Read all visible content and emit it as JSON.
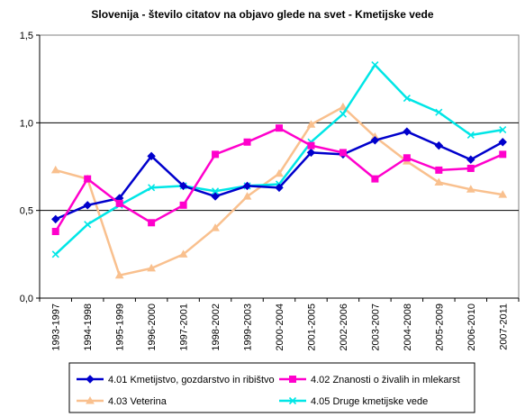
{
  "chart_data": {
    "type": "line",
    "title": "Slovenija - število citatov na objavo glede na svet - Kmetijske vede",
    "xlabel": "",
    "ylabel": "",
    "ylim": [
      0,
      1.5
    ],
    "yticks": [
      "0,0",
      "0,5",
      "1,0",
      "1,5"
    ],
    "categories": [
      "1993-1997",
      "1994-1998",
      "1995-1999",
      "1996-2000",
      "1997-2001",
      "1998-2002",
      "1999-2003",
      "2000-2004",
      "2001-2005",
      "2002-2006",
      "2003-2007",
      "2004-2008",
      "2005-2009",
      "2006-2010",
      "2007-2011"
    ],
    "grid": "horizontal at 0,5 and 1,0",
    "legend_position": "bottom",
    "series": [
      {
        "name": "4.01 Kmetijstvo, gozdarstvo in ribištvo",
        "color": "#0000cc",
        "marker": "diamond",
        "values": [
          0.45,
          0.53,
          0.57,
          0.81,
          0.64,
          0.58,
          0.64,
          0.63,
          0.83,
          0.82,
          0.9,
          0.95,
          0.87,
          0.79,
          0.89
        ]
      },
      {
        "name": "4.02 Znanosti o živalih in mlekarst",
        "color": "#ff00cc",
        "marker": "square",
        "values": [
          0.38,
          0.68,
          0.54,
          0.43,
          0.53,
          0.82,
          0.89,
          0.97,
          0.87,
          0.83,
          0.68,
          0.8,
          0.73,
          0.74,
          0.82
        ]
      },
      {
        "name": "4.03 Veterina",
        "color": "#f9c08e",
        "marker": "triangle",
        "values": [
          0.73,
          0.68,
          0.13,
          0.17,
          0.25,
          0.4,
          0.58,
          0.71,
          0.99,
          1.09,
          0.92,
          0.78,
          0.66,
          0.62,
          0.59
        ]
      },
      {
        "name": "4.05 Druge kmetijske vede",
        "color": "#00e6e6",
        "marker": "x",
        "values": [
          0.25,
          0.42,
          0.53,
          0.63,
          0.64,
          0.61,
          0.64,
          0.65,
          0.89,
          1.05,
          1.33,
          1.14,
          1.06,
          0.93,
          0.96
        ]
      }
    ]
  }
}
